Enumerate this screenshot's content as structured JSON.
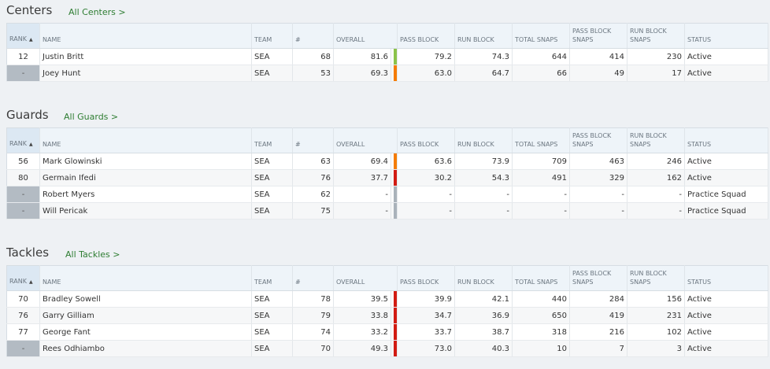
{
  "headers": {
    "rank": "RANK",
    "name": "NAME",
    "team": "TEAM",
    "number": "#",
    "overall": "OVERALL",
    "pass_block": "PASS BLOCK",
    "run_block": "RUN BLOCK",
    "total_snaps": "TOTAL SNAPS",
    "pass_block_snaps": "PASS BLOCK SNAPS",
    "run_block_snaps": "RUN BLOCK SNAPS",
    "status": "STATUS"
  },
  "colors": {
    "green": "#8bc34a",
    "orange": "#f57c00",
    "red": "#d21b12",
    "grey": "#a9b2ba"
  },
  "sections": [
    {
      "title": "Centers",
      "link": "All Centers >",
      "rows": [
        {
          "rank": "12",
          "name": "Justin Britt",
          "team": "SEA",
          "number": "68",
          "overall": "81.6",
          "grade": "green",
          "pass_block": "79.2",
          "run_block": "74.3",
          "total_snaps": "644",
          "pass_block_snaps": "414",
          "run_block_snaps": "230",
          "status": "Active"
        },
        {
          "rank": "-",
          "name": "Joey Hunt",
          "team": "SEA",
          "number": "53",
          "overall": "69.3",
          "grade": "orange",
          "pass_block": "63.0",
          "run_block": "64.7",
          "total_snaps": "66",
          "pass_block_snaps": "49",
          "run_block_snaps": "17",
          "status": "Active"
        }
      ]
    },
    {
      "title": "Guards",
      "link": "All Guards >",
      "rows": [
        {
          "rank": "56",
          "name": "Mark Glowinski",
          "team": "SEA",
          "number": "63",
          "overall": "69.4",
          "grade": "orange",
          "pass_block": "63.6",
          "run_block": "73.9",
          "total_snaps": "709",
          "pass_block_snaps": "463",
          "run_block_snaps": "246",
          "status": "Active"
        },
        {
          "rank": "80",
          "name": "Germain Ifedi",
          "team": "SEA",
          "number": "76",
          "overall": "37.7",
          "grade": "red",
          "pass_block": "30.2",
          "run_block": "54.3",
          "total_snaps": "491",
          "pass_block_snaps": "329",
          "run_block_snaps": "162",
          "status": "Active"
        },
        {
          "rank": "-",
          "name": "Robert Myers",
          "team": "SEA",
          "number": "62",
          "overall": "-",
          "grade": "grey",
          "pass_block": "-",
          "run_block": "-",
          "total_snaps": "-",
          "pass_block_snaps": "-",
          "run_block_snaps": "-",
          "status": "Practice Squad"
        },
        {
          "rank": "-",
          "name": "Will Pericak",
          "team": "SEA",
          "number": "75",
          "overall": "-",
          "grade": "grey",
          "pass_block": "-",
          "run_block": "-",
          "total_snaps": "-",
          "pass_block_snaps": "-",
          "run_block_snaps": "-",
          "status": "Practice Squad"
        }
      ]
    },
    {
      "title": "Tackles",
      "link": "All Tackles >",
      "rows": [
        {
          "rank": "70",
          "name": "Bradley Sowell",
          "team": "SEA",
          "number": "78",
          "overall": "39.5",
          "grade": "red",
          "pass_block": "39.9",
          "run_block": "42.1",
          "total_snaps": "440",
          "pass_block_snaps": "284",
          "run_block_snaps": "156",
          "status": "Active"
        },
        {
          "rank": "76",
          "name": "Garry Gilliam",
          "team": "SEA",
          "number": "79",
          "overall": "33.8",
          "grade": "red",
          "pass_block": "34.7",
          "run_block": "36.9",
          "total_snaps": "650",
          "pass_block_snaps": "419",
          "run_block_snaps": "231",
          "status": "Active"
        },
        {
          "rank": "77",
          "name": "George Fant",
          "team": "SEA",
          "number": "74",
          "overall": "33.2",
          "grade": "red",
          "pass_block": "33.7",
          "run_block": "38.7",
          "total_snaps": "318",
          "pass_block_snaps": "216",
          "run_block_snaps": "102",
          "status": "Active"
        },
        {
          "rank": "-",
          "name": "Rees Odhiambo",
          "team": "SEA",
          "number": "70",
          "overall": "49.3",
          "grade": "red",
          "pass_block": "73.0",
          "run_block": "40.3",
          "total_snaps": "10",
          "pass_block_snaps": "7",
          "run_block_snaps": "3",
          "status": "Active"
        }
      ]
    }
  ]
}
